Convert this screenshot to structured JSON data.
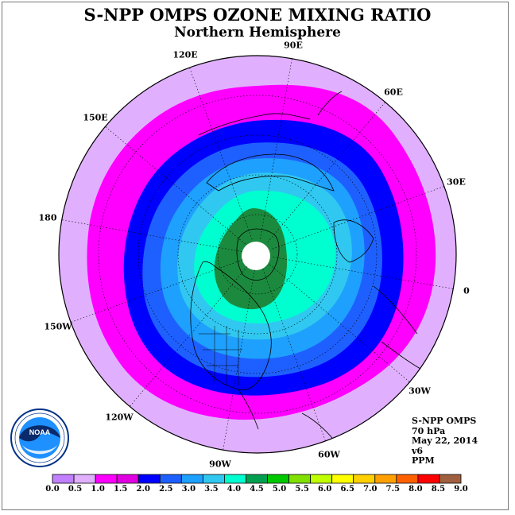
{
  "header": {
    "title": "S-NPP OMPS OZONE MIXING RATIO",
    "subtitle": "Northern Hemisphere"
  },
  "longitude_labels": [
    {
      "id": "90e",
      "text": "90E"
    },
    {
      "id": "60e",
      "text": "60E"
    },
    {
      "id": "30e",
      "text": "30E"
    },
    {
      "id": "0",
      "text": "0"
    },
    {
      "id": "30w",
      "text": "30W"
    },
    {
      "id": "60w",
      "text": "60W"
    },
    {
      "id": "90w",
      "text": "90W"
    },
    {
      "id": "120w",
      "text": "120W"
    },
    {
      "id": "150w",
      "text": "150W"
    },
    {
      "id": "180",
      "text": "180"
    },
    {
      "id": "150e",
      "text": "150E"
    },
    {
      "id": "120e",
      "text": "120E"
    }
  ],
  "info_box": {
    "instrument": "S-NPP OMPS",
    "level": "70 hPa",
    "date": "May 22, 2014",
    "version": "v6",
    "units": "PPM"
  },
  "logo": {
    "name": "NOAA",
    "ring_text": "NATIONAL OCEANIC AND ATMOSPHERIC ADMINISTRATION · U.S. DEPARTMENT OF COMMERCE"
  },
  "colorbar": {
    "ticks": [
      "0.0",
      "0.5",
      "1.0",
      "1.5",
      "2.0",
      "2.5",
      "3.0",
      "3.5",
      "4.0",
      "4.5",
      "5.0",
      "5.5",
      "6.0",
      "6.5",
      "7.0",
      "7.5",
      "8.0",
      "8.5",
      "9.0"
    ],
    "colors": [
      "#c080ff",
      "#e0b0ff",
      "#ff00ff",
      "#e000e0",
      "#0000ff",
      "#1e60ff",
      "#1ea0ff",
      "#30c8f0",
      "#00ffd0",
      "#00a050",
      "#00c800",
      "#80e000",
      "#c0ff00",
      "#ffff00",
      "#ffd000",
      "#ffa000",
      "#ff6000",
      "#ff0000",
      "#a06040"
    ]
  },
  "map": {
    "colors": {
      "outer": "#e0b0ff",
      "magenta": "#ff00ff",
      "blue": "#0000ff",
      "mid_blue": "#1e60ff",
      "light_blue": "#1ea0ff",
      "sky": "#30c8f0",
      "cyan": "#00ffd0",
      "green": "#1b8a3e",
      "pole": "#ffffff"
    }
  }
}
